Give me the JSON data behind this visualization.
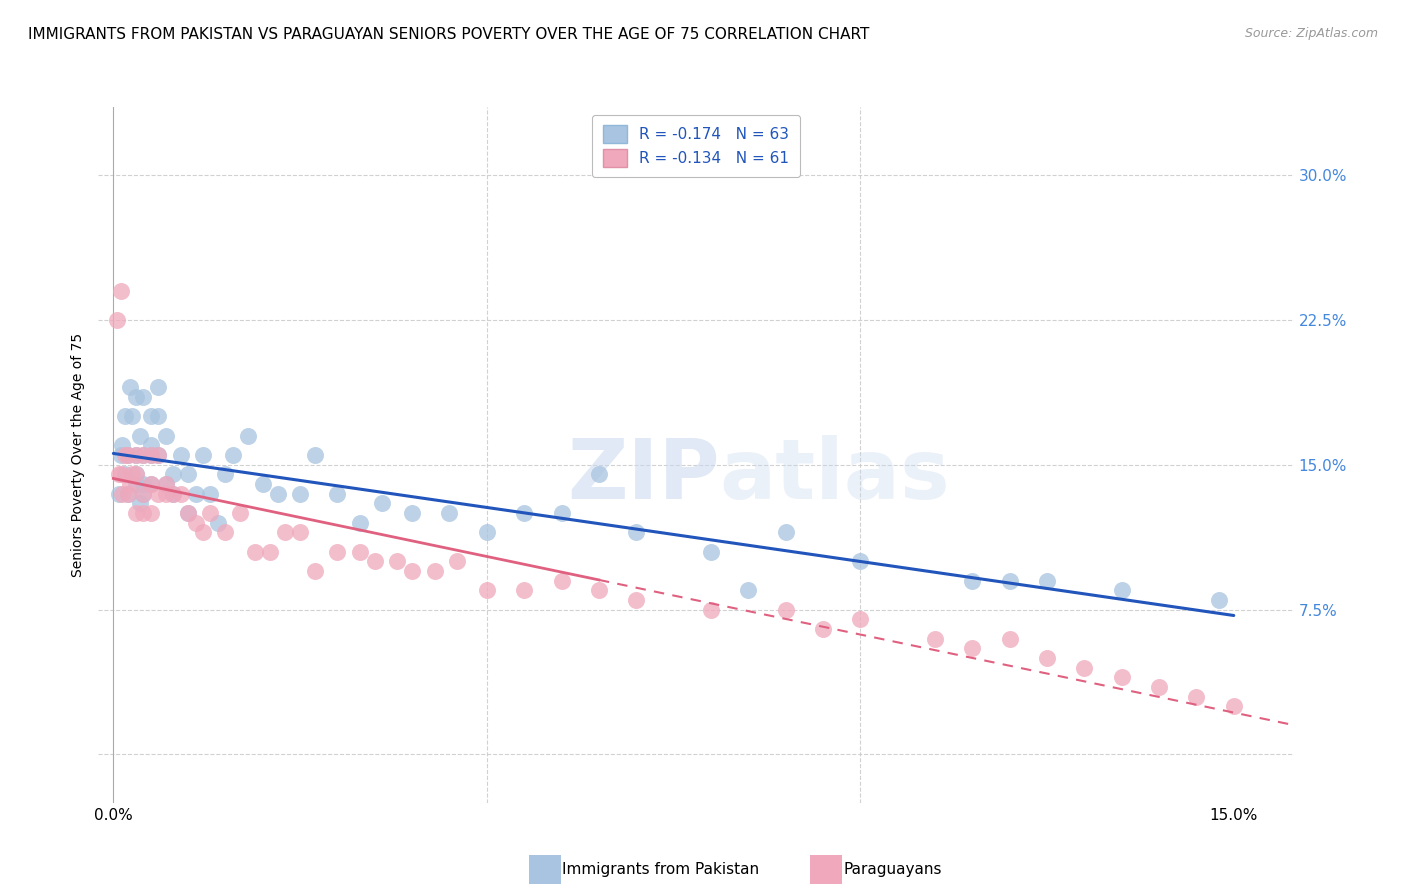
{
  "title": "IMMIGRANTS FROM PAKISTAN VS PARAGUAYAN SENIORS POVERTY OVER THE AGE OF 75 CORRELATION CHART",
  "source": "Source: ZipAtlas.com",
  "ylabel": "Seniors Poverty Over the Age of 75",
  "xlim": [
    -0.002,
    0.158
  ],
  "ylim": [
    -0.025,
    0.335
  ],
  "blue_color": "#a8c4e0",
  "pink_color": "#f0a8bc",
  "blue_line_color": "#2255bb",
  "pink_line_color": "#e06080",
  "legend_blue_label": "R = -0.174   N = 63",
  "legend_pink_label": "R = -0.134   N = 61",
  "legend_title_blue": "Immigrants from Pakistan",
  "legend_title_pink": "Paraguayans",
  "watermark_zip": "ZIP",
  "watermark_atlas": "atlas",
  "grid_color": "#cccccc",
  "background_color": "#ffffff",
  "right_ytick_color": "#4488dd",
  "blue_scatter_x": [
    0.0008,
    0.001,
    0.0012,
    0.0015,
    0.0015,
    0.002,
    0.002,
    0.0022,
    0.0025,
    0.003,
    0.003,
    0.003,
    0.003,
    0.0035,
    0.0035,
    0.004,
    0.004,
    0.004,
    0.004,
    0.005,
    0.005,
    0.005,
    0.005,
    0.006,
    0.006,
    0.006,
    0.007,
    0.007,
    0.008,
    0.008,
    0.009,
    0.01,
    0.01,
    0.011,
    0.012,
    0.013,
    0.014,
    0.015,
    0.016,
    0.018,
    0.02,
    0.022,
    0.025,
    0.027,
    0.03,
    0.033,
    0.036,
    0.04,
    0.045,
    0.05,
    0.055,
    0.06,
    0.065,
    0.07,
    0.08,
    0.085,
    0.09,
    0.1,
    0.115,
    0.12,
    0.125,
    0.135,
    0.148
  ],
  "blue_scatter_y": [
    0.135,
    0.155,
    0.16,
    0.145,
    0.175,
    0.135,
    0.155,
    0.19,
    0.175,
    0.14,
    0.145,
    0.155,
    0.185,
    0.13,
    0.165,
    0.135,
    0.14,
    0.155,
    0.185,
    0.14,
    0.155,
    0.16,
    0.175,
    0.175,
    0.155,
    0.19,
    0.14,
    0.165,
    0.135,
    0.145,
    0.155,
    0.125,
    0.145,
    0.135,
    0.155,
    0.135,
    0.12,
    0.145,
    0.155,
    0.165,
    0.14,
    0.135,
    0.135,
    0.155,
    0.135,
    0.12,
    0.13,
    0.125,
    0.125,
    0.115,
    0.125,
    0.125,
    0.145,
    0.115,
    0.105,
    0.085,
    0.115,
    0.1,
    0.09,
    0.09,
    0.09,
    0.085,
    0.08
  ],
  "pink_scatter_x": [
    0.0005,
    0.0008,
    0.001,
    0.001,
    0.0012,
    0.0015,
    0.002,
    0.002,
    0.0022,
    0.0025,
    0.003,
    0.003,
    0.003,
    0.004,
    0.004,
    0.004,
    0.005,
    0.005,
    0.005,
    0.006,
    0.006,
    0.007,
    0.007,
    0.008,
    0.009,
    0.01,
    0.011,
    0.012,
    0.013,
    0.015,
    0.017,
    0.019,
    0.021,
    0.023,
    0.025,
    0.027,
    0.03,
    0.033,
    0.035,
    0.038,
    0.04,
    0.043,
    0.046,
    0.05,
    0.055,
    0.06,
    0.065,
    0.07,
    0.08,
    0.09,
    0.095,
    0.1,
    0.11,
    0.115,
    0.12,
    0.125,
    0.13,
    0.135,
    0.14,
    0.145,
    0.15
  ],
  "pink_scatter_y": [
    0.225,
    0.145,
    0.145,
    0.24,
    0.135,
    0.155,
    0.135,
    0.155,
    0.14,
    0.145,
    0.125,
    0.145,
    0.155,
    0.125,
    0.135,
    0.155,
    0.14,
    0.155,
    0.125,
    0.135,
    0.155,
    0.135,
    0.14,
    0.135,
    0.135,
    0.125,
    0.12,
    0.115,
    0.125,
    0.115,
    0.125,
    0.105,
    0.105,
    0.115,
    0.115,
    0.095,
    0.105,
    0.105,
    0.1,
    0.1,
    0.095,
    0.095,
    0.1,
    0.085,
    0.085,
    0.09,
    0.085,
    0.08,
    0.075,
    0.075,
    0.065,
    0.07,
    0.06,
    0.055,
    0.06,
    0.05,
    0.045,
    0.04,
    0.035,
    0.03,
    0.025
  ],
  "blue_R": -0.174,
  "blue_N": 63,
  "pink_R": -0.134,
  "pink_N": 61
}
